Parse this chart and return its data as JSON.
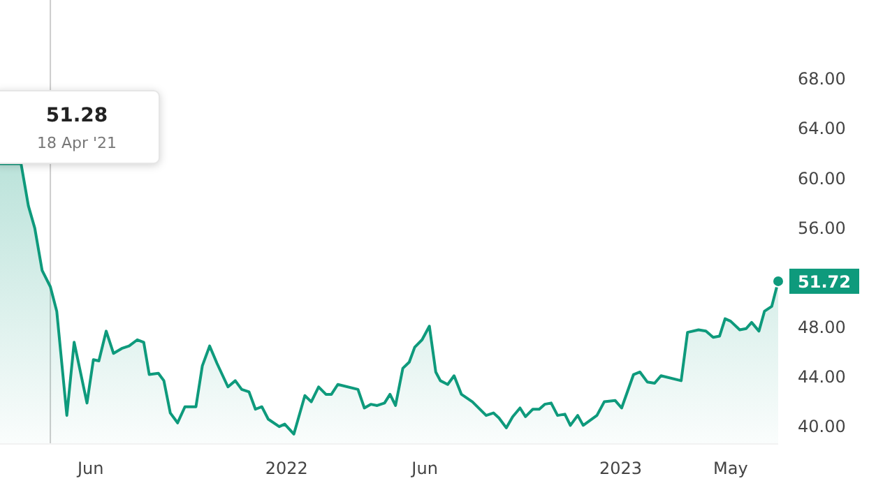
{
  "chart_data": {
    "type": "area",
    "x": [
      "2021-02-22",
      "2021-03-17",
      "2021-03-25",
      "2021-04-01",
      "2021-04-09",
      "2021-04-18",
      "2021-04-25",
      "2021-05-06",
      "2021-05-14",
      "2021-05-28",
      "2021-06-04",
      "2021-06-10",
      "2021-06-18",
      "2021-06-26",
      "2021-07-05",
      "2021-07-13",
      "2021-07-22",
      "2021-07-29",
      "2021-08-04",
      "2021-08-14",
      "2021-08-20",
      "2021-08-27",
      "2021-09-04",
      "2021-09-12",
      "2021-09-24",
      "2021-10-01",
      "2021-10-09",
      "2021-10-17",
      "2021-10-29",
      "2021-11-06",
      "2021-11-13",
      "2021-11-21",
      "2021-11-28",
      "2021-12-05",
      "2021-12-12",
      "2021-12-24",
      "2021-12-30",
      "2022-01-09",
      "2022-01-21",
      "2022-01-28",
      "2022-02-05",
      "2022-02-13",
      "2022-02-19",
      "2022-02-26",
      "2022-03-20",
      "2022-03-27",
      "2022-04-03",
      "2022-04-10",
      "2022-04-18",
      "2022-04-24",
      "2022-04-30",
      "2022-05-08",
      "2022-05-15",
      "2022-05-21",
      "2022-05-29",
      "2022-06-06",
      "2022-06-13",
      "2022-06-18",
      "2022-06-26",
      "2022-07-03",
      "2022-07-11",
      "2022-07-23",
      "2022-08-07",
      "2022-08-15",
      "2022-08-21",
      "2022-08-29",
      "2022-09-05",
      "2022-09-13",
      "2022-09-19",
      "2022-09-27",
      "2022-10-04",
      "2022-10-10",
      "2022-10-17",
      "2022-10-24",
      "2022-11-01",
      "2022-11-07",
      "2022-11-15",
      "2022-11-21",
      "2022-12-06",
      "2022-12-14",
      "2022-12-26",
      "2023-01-02",
      "2023-01-15",
      "2023-01-22",
      "2023-01-30",
      "2023-02-07",
      "2023-02-14",
      "2023-03-08",
      "2023-03-15",
      "2023-03-27",
      "2023-04-04",
      "2023-04-12",
      "2023-04-19",
      "2023-04-25",
      "2023-05-01",
      "2023-05-11",
      "2023-05-18",
      "2023-05-24",
      "2023-06-01",
      "2023-06-07",
      "2023-06-15",
      "2023-06-22"
    ],
    "series": [
      {
        "color": "#0e9a7c",
        "values": [
          61.2,
          61.2,
          57.8,
          56.0,
          52.6,
          51.28,
          49.3,
          40.9,
          46.8,
          41.9,
          45.4,
          45.3,
          47.7,
          45.9,
          46.3,
          46.5,
          47.0,
          46.8,
          44.2,
          44.3,
          43.7,
          41.1,
          40.3,
          41.6,
          41.6,
          44.9,
          46.5,
          45.1,
          43.2,
          43.7,
          43.0,
          42.8,
          41.4,
          41.6,
          40.6,
          40.0,
          40.2,
          39.4,
          42.5,
          42.0,
          43.2,
          42.6,
          42.6,
          43.4,
          43.0,
          41.5,
          41.8,
          41.7,
          41.9,
          42.6,
          41.7,
          44.7,
          45.2,
          46.4,
          47.0,
          48.1,
          44.4,
          43.7,
          43.4,
          44.1,
          42.6,
          42.0,
          40.9,
          41.1,
          40.7,
          39.9,
          40.8,
          41.5,
          40.8,
          41.4,
          41.4,
          41.8,
          41.9,
          40.9,
          41.0,
          40.1,
          40.9,
          40.1,
          40.9,
          42.0,
          42.1,
          41.5,
          44.2,
          44.4,
          43.6,
          43.5,
          44.1,
          43.7,
          47.6,
          47.8,
          47.7,
          47.2,
          47.3,
          48.7,
          48.5,
          47.8,
          47.9,
          48.4,
          47.7,
          49.3,
          49.7,
          51.72
        ]
      }
    ],
    "xlim": [
      "2021-02-22",
      "2023-06-22"
    ],
    "ylim": [
      38.6,
      74.4
    ],
    "xticks": [
      {
        "value": "2021-06-01",
        "label": "Jun"
      },
      {
        "value": "2022-01-01",
        "label": "2022"
      },
      {
        "value": "2022-06-01",
        "label": "Jun"
      },
      {
        "value": "2023-01-01",
        "label": "2023"
      },
      {
        "value": "2023-05-01",
        "label": "May"
      }
    ],
    "yticks": [
      {
        "value": 40,
        "label": "40.00"
      },
      {
        "value": 44,
        "label": "44.00"
      },
      {
        "value": 48,
        "label": "48.00"
      },
      {
        "value": 56,
        "label": "56.00"
      },
      {
        "value": 60,
        "label": "60.00"
      },
      {
        "value": 64,
        "label": "64.00"
      },
      {
        "value": 68,
        "label": "68.00"
      }
    ],
    "ref_lines": [
      {
        "axis": "x",
        "value": "2021-04-18",
        "color": "#cccccc"
      }
    ],
    "annotations": [
      "51.28",
      "18 Apr '21",
      {
        "text": "51.72",
        "x": "2023-06-22",
        "y": 51.72
      }
    ],
    "grid": false
  }
}
